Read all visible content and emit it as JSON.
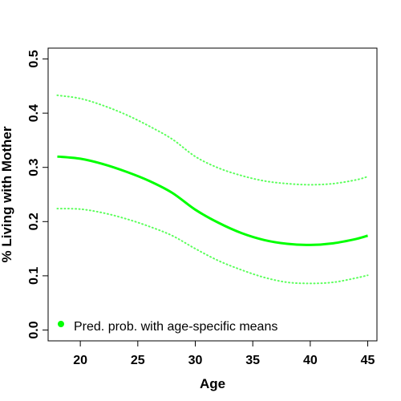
{
  "chart_data": {
    "type": "line",
    "xlabel": "Age",
    "ylabel": "% Living with Mother",
    "xlim": [
      17.2,
      45.8
    ],
    "ylim": [
      -0.02,
      0.52
    ],
    "x_ticks": [
      20,
      25,
      30,
      35,
      40,
      45
    ],
    "x_tick_labels": [
      "20",
      "25",
      "30",
      "35",
      "40",
      "45"
    ],
    "y_ticks": [
      0.0,
      0.1,
      0.2,
      0.3,
      0.4,
      0.5
    ],
    "y_tick_labels": [
      "0.0",
      "0.1",
      "0.2",
      "0.3",
      "0.4",
      "0.5"
    ],
    "grid": false,
    "legend_position": "bottom-left",
    "series": [
      {
        "name": "Pred. prob. with age-specific means",
        "style": "solid",
        "color": "#00ff00",
        "x": [
          18,
          20,
          22,
          24,
          26,
          28,
          30,
          32,
          34,
          36,
          38,
          40,
          42,
          44,
          45
        ],
        "y": [
          0.32,
          0.316,
          0.306,
          0.292,
          0.275,
          0.253,
          0.222,
          0.198,
          0.179,
          0.166,
          0.159,
          0.157,
          0.16,
          0.168,
          0.174
        ]
      },
      {
        "style": "dotted",
        "color": "#5cff5c",
        "x": [
          18,
          20,
          22,
          24,
          26,
          28,
          30,
          32,
          34,
          36,
          38,
          40,
          42,
          44,
          45
        ],
        "y": [
          0.433,
          0.427,
          0.414,
          0.397,
          0.376,
          0.352,
          0.32,
          0.299,
          0.285,
          0.275,
          0.27,
          0.268,
          0.27,
          0.277,
          0.283
        ]
      },
      {
        "style": "dotted",
        "color": "#5cff5c",
        "x": [
          18,
          20,
          22,
          24,
          26,
          28,
          30,
          32,
          34,
          36,
          38,
          40,
          42,
          44,
          45
        ],
        "y": [
          0.224,
          0.223,
          0.216,
          0.205,
          0.191,
          0.174,
          0.15,
          0.128,
          0.111,
          0.097,
          0.088,
          0.086,
          0.088,
          0.096,
          0.101
        ]
      }
    ],
    "legend": {
      "label": "Pred. prob. with age-specific means",
      "marker_color": "#00ff00"
    }
  }
}
